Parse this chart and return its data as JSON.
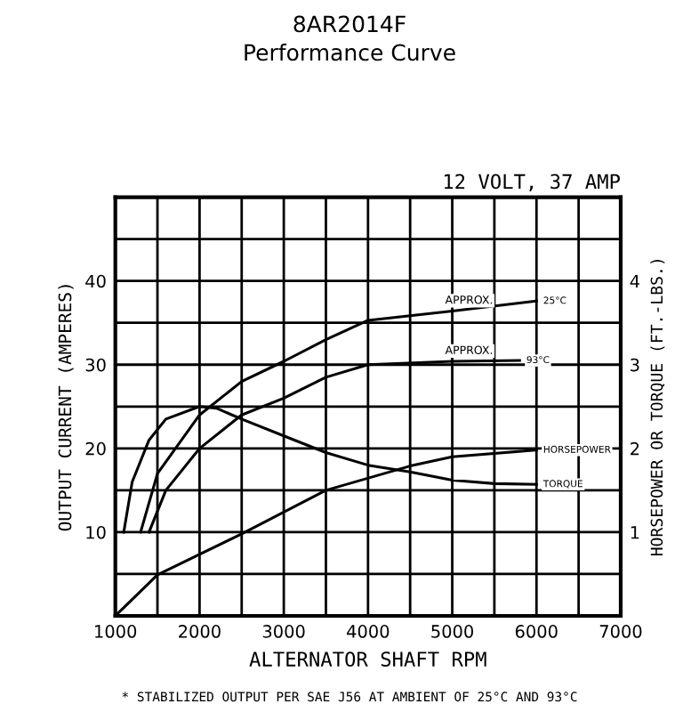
{
  "chart_data": {
    "type": "line",
    "title": "8AR2014F",
    "subtitle": "Performance Curve",
    "xlabel": "ALTERNATOR SHAFT RPM",
    "ylabel": "OUTPUT CURRENT (AMPERES)",
    "y2label": "HORSEPOWER OR TORQUE (FT.-LBS.)",
    "annotations": [
      "12 VOLT, 37 AMP",
      "* STABILIZED OUTPUT PER SAE J56 AT AMBIENT OF 25°C AND 93°C",
      {
        "text": "APPROX.",
        "x": 5200,
        "y": 37
      },
      {
        "text": "APPROX.",
        "x": 5200,
        "y": 31
      }
    ],
    "series": [
      {
        "name": "25°C",
        "color": "#000000",
        "x": [
          1300,
          1500,
          2000,
          2500,
          3000,
          3500,
          4000,
          5000,
          6000
        ],
        "values": [
          10,
          17,
          24,
          28,
          30.4,
          33,
          35.3,
          36.4,
          37.6
        ]
      },
      {
        "name": "93°C",
        "color": "#000000",
        "x": [
          1400,
          1600,
          2000,
          2500,
          3000,
          3500,
          4000,
          5000,
          5800
        ],
        "values": [
          10,
          15,
          20,
          24,
          26,
          28.5,
          30,
          30.4,
          30.5
        ]
      },
      {
        "name": "HORSEPOWER",
        "color": "#000000",
        "axis": "y2",
        "x": [
          1000,
          1500,
          2500,
          3500,
          4500,
          5000,
          6000
        ],
        "values": [
          0,
          0.49,
          0.98,
          1.5,
          1.79,
          1.9,
          1.98
        ]
      },
      {
        "name": "TORQUE",
        "color": "#000000",
        "axis": "y2",
        "x": [
          1100,
          1200,
          1400,
          1600,
          2000,
          2200,
          2500,
          3000,
          3500,
          4000,
          4500,
          5000,
          5500,
          6000
        ],
        "values": [
          1.0,
          1.6,
          2.1,
          2.35,
          2.5,
          2.48,
          2.35,
          2.15,
          1.95,
          1.8,
          1.72,
          1.62,
          1.58,
          1.57
        ]
      }
    ],
    "xlim": [
      1000,
      7000
    ],
    "xticks": [
      1000,
      {
        "value": 1500,
        "label": null
      },
      2000,
      {
        "value": 2500,
        "label": null
      },
      3000,
      {
        "value": 3500,
        "label": null
      },
      4000,
      {
        "value": 4500,
        "label": null
      },
      5000,
      {
        "value": 5500,
        "label": null
      },
      6000,
      {
        "value": 6500,
        "label": null
      },
      7000
    ],
    "ylim": [
      0,
      50
    ],
    "yticks": [
      {
        "value": 5,
        "label": null
      },
      10,
      {
        "value": 15,
        "label": null
      },
      20,
      {
        "value": 25,
        "label": null
      },
      30,
      {
        "value": 35,
        "label": null
      },
      40,
      {
        "value": 45,
        "label": null
      }
    ],
    "y2lim": [
      0,
      5
    ],
    "y2ticks": [
      1,
      2,
      3,
      4
    ],
    "grid": true,
    "line_style": "solid",
    "marker": "none",
    "legend": false
  }
}
